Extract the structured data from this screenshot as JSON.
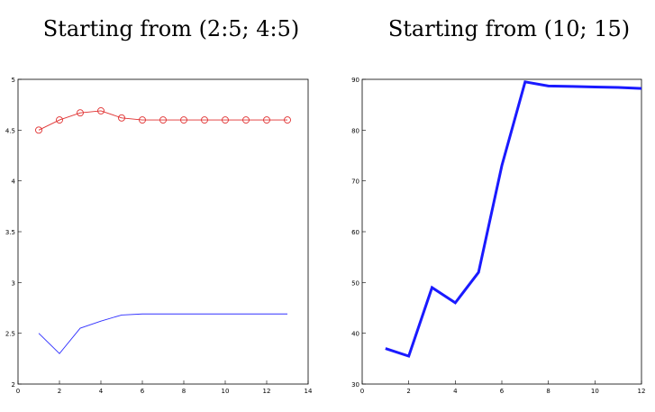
{
  "chart_data": [
    {
      "type": "line",
      "title": "Starting from (2:5; 4:5)",
      "x": [
        1,
        2,
        3,
        4,
        5,
        6,
        7,
        8,
        9,
        10,
        11,
        12,
        13
      ],
      "series": [
        {
          "color": "#e03030",
          "marker": "circle",
          "values": [
            4.5,
            4.6,
            4.67,
            4.69,
            4.62,
            4.6,
            4.6,
            4.6,
            4.6,
            4.6,
            4.6,
            4.6,
            4.6
          ]
        },
        {
          "color": "#3030ff",
          "values": [
            2.5,
            2.3,
            2.55,
            2.62,
            2.68,
            2.69,
            2.69,
            2.69,
            2.69,
            2.69,
            2.69,
            2.69,
            2.69
          ]
        }
      ],
      "xlim": [
        0,
        14
      ],
      "xticks": [
        0,
        2,
        4,
        6,
        8,
        10,
        12,
        14
      ],
      "ylim": [
        2,
        5
      ],
      "yticks": [
        2,
        2.5,
        3,
        3.5,
        4,
        4.5,
        5
      ]
    },
    {
      "type": "line",
      "title": "Starting from (10; 15)",
      "x": [
        1,
        2,
        3,
        4,
        5,
        6,
        7,
        8,
        9,
        10,
        11,
        12
      ],
      "series": [
        {
          "color": "#1a1aff",
          "width": 3,
          "values": [
            37,
            35.5,
            49,
            46,
            52,
            73,
            89.5,
            88.7,
            88.6,
            88.5,
            88.4,
            88.2
          ]
        }
      ],
      "xlim": [
        0,
        12
      ],
      "xticks": [
        0,
        2,
        4,
        6,
        8,
        10,
        12
      ],
      "ylim": [
        30,
        90
      ],
      "yticks": [
        30,
        40,
        50,
        60,
        70,
        80,
        90
      ]
    }
  ]
}
